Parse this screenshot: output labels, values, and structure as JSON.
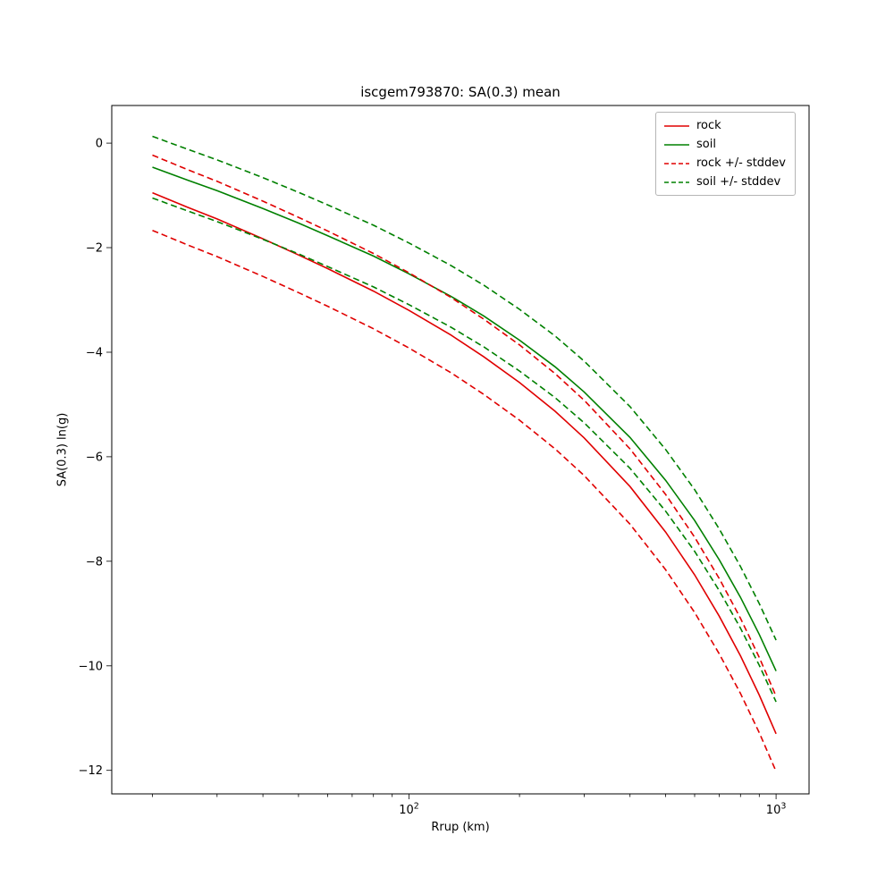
{
  "chart_data": {
    "type": "line",
    "title": "iscgem793870: SA(0.3) mean",
    "xlabel": "Rrup (km)",
    "ylabel": "SA(0.3) ln(g)",
    "x_scale": "log",
    "y_scale": "linear",
    "xlim": [
      15.5,
      1230
    ],
    "ylim": [
      -12.45,
      0.72
    ],
    "yticks": [
      0,
      -2,
      -4,
      -6,
      -8,
      -10,
      -12
    ],
    "xticks": [
      100,
      1000
    ],
    "grid": false,
    "x": [
      20,
      25,
      30,
      40,
      50,
      60,
      80,
      100,
      130,
      160,
      200,
      250,
      300,
      400,
      500,
      600,
      700,
      800,
      900,
      1000
    ],
    "series": [
      {
        "name": "rock",
        "color": "#e00000",
        "style": "solid",
        "values": [
          -0.95,
          -1.23,
          -1.45,
          -1.83,
          -2.14,
          -2.4,
          -2.83,
          -3.2,
          -3.67,
          -4.09,
          -4.58,
          -5.13,
          -5.64,
          -6.57,
          -7.44,
          -8.26,
          -9.05,
          -9.81,
          -10.56,
          -11.3
        ]
      },
      {
        "name": "soil",
        "color": "#008000",
        "style": "solid",
        "values": [
          -0.46,
          -0.71,
          -0.91,
          -1.25,
          -1.53,
          -1.77,
          -2.16,
          -2.5,
          -2.93,
          -3.31,
          -3.77,
          -4.28,
          -4.76,
          -5.63,
          -6.45,
          -7.22,
          -7.97,
          -8.69,
          -9.4,
          -10.1
        ]
      },
      {
        "name": "rock +/- stddev",
        "color": "#e00000",
        "style": "dashed",
        "base": "rock",
        "stddev": 0.72
      },
      {
        "name": "soil +/- stddev",
        "color": "#008000",
        "style": "dashed",
        "base": "soil",
        "stddev": 0.59
      }
    ],
    "legend": {
      "position": "upper right",
      "entries": [
        {
          "label": "rock",
          "color": "#e00000",
          "dash": false
        },
        {
          "label": "soil",
          "color": "#008000",
          "dash": false
        },
        {
          "label": "rock +/- stddev",
          "color": "#e00000",
          "dash": true
        },
        {
          "label": "soil +/- stddev",
          "color": "#008000",
          "dash": true
        }
      ]
    }
  }
}
